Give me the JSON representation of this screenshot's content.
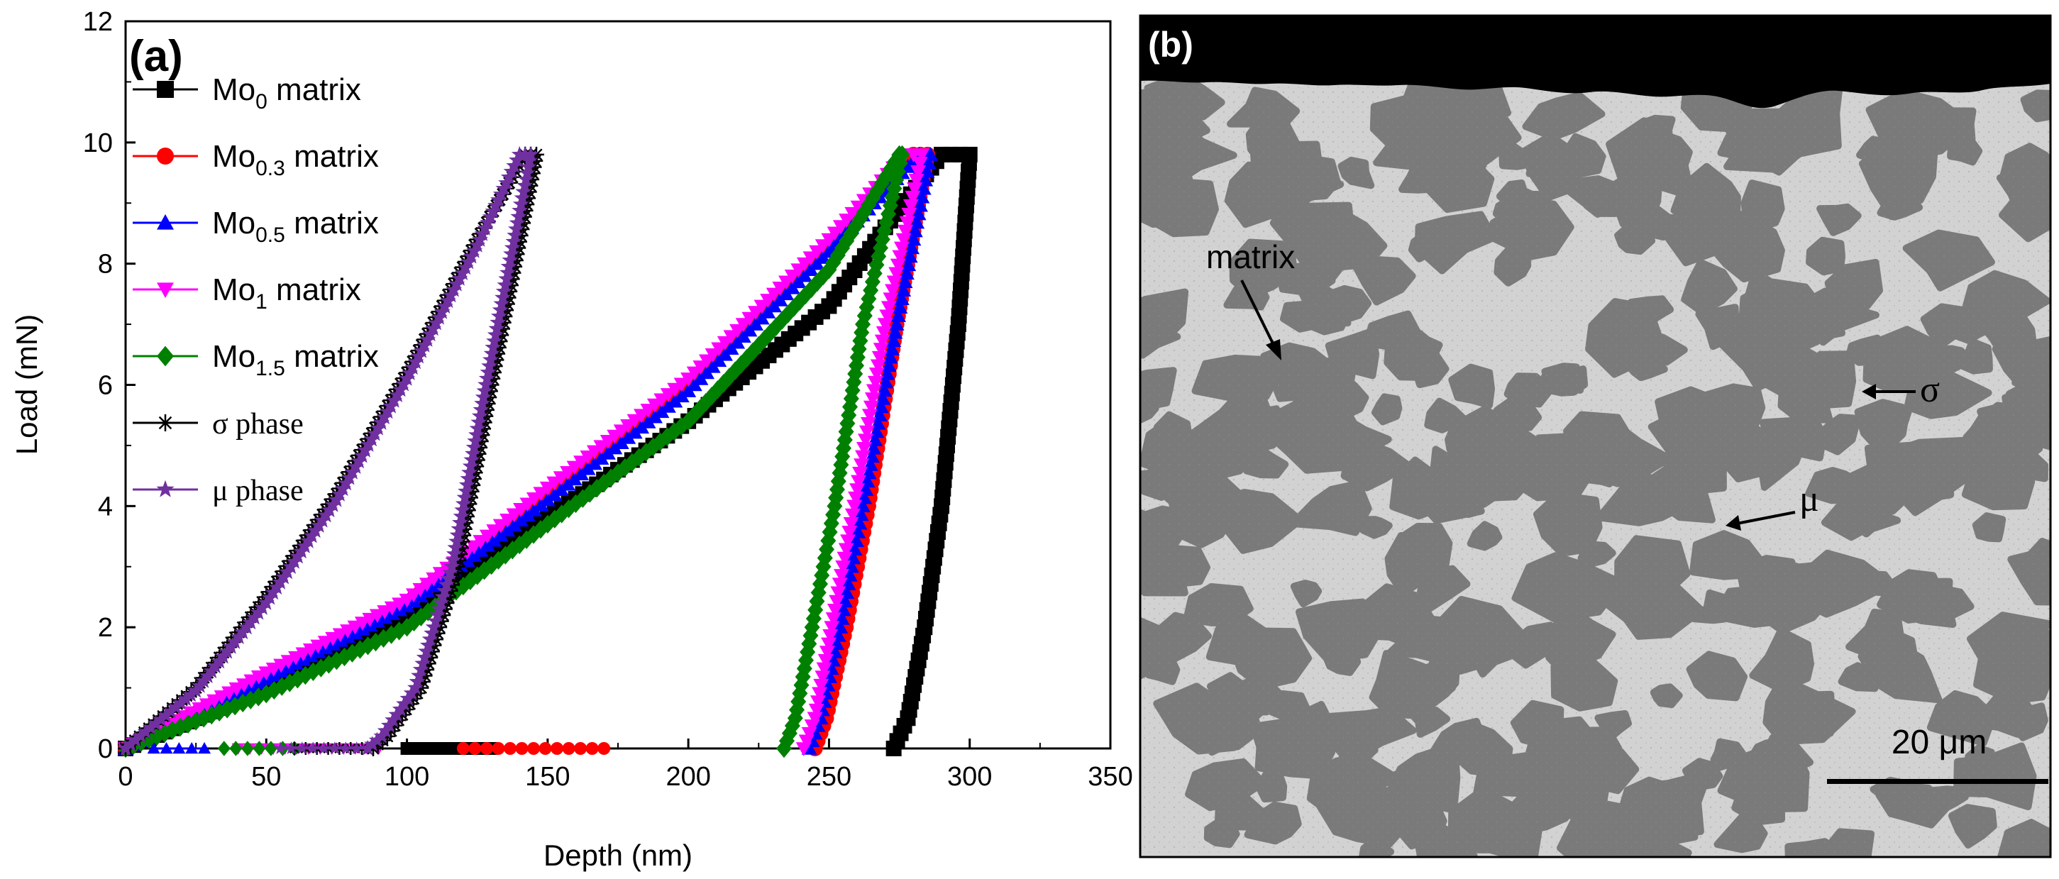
{
  "chart_data": [
    {
      "type": "line",
      "panel_label": "(a)",
      "xlabel": "Depth (nm)",
      "ylabel": "Load (mN)",
      "xlim": [
        0,
        350
      ],
      "ylim": [
        0,
        12
      ],
      "x_ticks": [
        0,
        50,
        100,
        150,
        200,
        250,
        300,
        350
      ],
      "y_ticks": [
        0,
        2,
        4,
        6,
        8,
        10,
        12
      ],
      "grid": false,
      "legend_position": "top-left",
      "series": [
        {
          "name": "Mo0 matrix",
          "base": "Mo",
          "sub": "0",
          "suffix": " matrix",
          "color": "#000000",
          "marker": "square",
          "loading": [
            [
              0,
              0
            ],
            [
              50,
              1.0
            ],
            [
              100,
              2.2
            ],
            [
              150,
              3.8
            ],
            [
              200,
              5.4
            ],
            [
              250,
              7.3
            ],
            [
              270,
              8.6
            ],
            [
              290,
              9.8
            ]
          ],
          "hold": [
            [
              290,
              9.8
            ],
            [
              300,
              9.8
            ]
          ],
          "unloading": [
            [
              300,
              9.8
            ],
            [
              296,
              7.0
            ],
            [
              290,
              4.0
            ],
            [
              284,
              2.0
            ],
            [
              278,
              0.5
            ],
            [
              273,
              0
            ]
          ],
          "baseline": [
            [
              100,
              0
            ],
            [
              130,
              0
            ]
          ]
        },
        {
          "name": "Mo0.3 matrix",
          "base": "Mo",
          "sub": "0.3",
          "suffix": " matrix",
          "color": "#ff0000",
          "marker": "circle",
          "loading": [
            [
              0,
              0
            ],
            [
              50,
              1.2
            ],
            [
              100,
              2.4
            ],
            [
              150,
              4.2
            ],
            [
              200,
              6.0
            ],
            [
              250,
              8.3
            ],
            [
              280,
              9.8
            ]
          ],
          "hold": [
            [
              280,
              9.8
            ],
            [
              285,
              9.8
            ]
          ],
          "unloading": [
            [
              285,
              9.8
            ],
            [
              274,
              7.0
            ],
            [
              264,
              4.0
            ],
            [
              256,
              2.0
            ],
            [
              249,
              0.5
            ],
            [
              245,
              0
            ]
          ],
          "baseline": [
            [
              120,
              0
            ],
            [
              170,
              0
            ]
          ]
        },
        {
          "name": "Mo0.5 matrix",
          "base": "Mo",
          "sub": "0.5",
          "suffix": " matrix",
          "color": "#0000ff",
          "marker": "triangle-up",
          "loading": [
            [
              0,
              0
            ],
            [
              50,
              1.15
            ],
            [
              100,
              2.35
            ],
            [
              150,
              4.1
            ],
            [
              200,
              5.9
            ],
            [
              250,
              8.2
            ],
            [
              282,
              9.8
            ]
          ],
          "hold": [
            [
              282,
              9.8
            ],
            [
              286,
              9.8
            ]
          ],
          "unloading": [
            [
              286,
              9.8
            ],
            [
              274,
              7.0
            ],
            [
              262,
              4.0
            ],
            [
              254,
              2.0
            ],
            [
              247,
              0.5
            ],
            [
              243,
              0
            ]
          ],
          "baseline": [
            [
              10,
              0
            ],
            [
              28,
              0
            ]
          ]
        },
        {
          "name": "Mo1 matrix",
          "base": "Mo",
          "sub": "1",
          "suffix": " matrix",
          "color": "#ff00ff",
          "marker": "triangle-down",
          "loading": [
            [
              0,
              0
            ],
            [
              50,
              1.25
            ],
            [
              100,
              2.45
            ],
            [
              150,
              4.3
            ],
            [
              200,
              6.1
            ],
            [
              250,
              8.4
            ],
            [
              277,
              9.8
            ]
          ],
          "hold": [
            [
              277,
              9.8
            ],
            [
              283,
              9.8
            ]
          ],
          "unloading": [
            [
              283,
              9.8
            ],
            [
              270,
              7.0
            ],
            [
              259,
              4.0
            ],
            [
              251,
              2.0
            ],
            [
              245,
              0.5
            ],
            [
              241,
              0
            ]
          ],
          "baseline": [
            [
              40,
              0
            ],
            [
              90,
              0
            ]
          ]
        },
        {
          "name": "Mo1.5 matrix",
          "base": "Mo",
          "sub": "1.5",
          "suffix": " matrix",
          "color": "#008000",
          "marker": "diamond",
          "loading": [
            [
              0,
              0
            ],
            [
              50,
              0.9
            ],
            [
              100,
              2.0
            ],
            [
              150,
              3.7
            ],
            [
              200,
              5.4
            ],
            [
              250,
              7.9
            ],
            [
              275,
              9.8
            ]
          ],
          "hold": [
            [
              275,
              9.8
            ],
            [
              276,
              9.8
            ]
          ],
          "unloading": [
            [
              276,
              9.8
            ],
            [
              262,
              7.0
            ],
            [
              252,
              4.0
            ],
            [
              244,
              2.0
            ],
            [
              238,
              0.5
            ],
            [
              234,
              0
            ]
          ],
          "baseline": [
            [
              35,
              0
            ],
            [
              60,
              0
            ]
          ]
        },
        {
          "name": "σ phase",
          "base": "σ phase",
          "sub": "",
          "suffix": "",
          "color": "#000000",
          "marker": "star",
          "loading": [
            [
              0,
              0
            ],
            [
              25,
              1.0
            ],
            [
              50,
              2.5
            ],
            [
              75,
              4.2
            ],
            [
              100,
              6.2
            ],
            [
              125,
              8.4
            ],
            [
              142,
              9.8
            ]
          ],
          "hold": [
            [
              142,
              9.8
            ],
            [
              146,
              9.8
            ]
          ],
          "unloading": [
            [
              146,
              9.8
            ],
            [
              130,
              6.0
            ],
            [
              118,
              3.0
            ],
            [
              105,
              1.0
            ],
            [
              93,
              0.2
            ],
            [
              88,
              0
            ]
          ],
          "baseline": [
            [
              60,
              0
            ],
            [
              88,
              0
            ]
          ]
        },
        {
          "name": "μ phase",
          "base": " μ phase",
          "sub": "",
          "suffix": "",
          "color": "#7030a0",
          "marker": "star5",
          "loading": [
            [
              0,
              0
            ],
            [
              25,
              0.95
            ],
            [
              50,
              2.4
            ],
            [
              75,
              4.1
            ],
            [
              100,
              6.1
            ],
            [
              125,
              8.3
            ],
            [
              140,
              9.8
            ]
          ],
          "hold": [
            [
              140,
              9.8
            ],
            [
              144,
              9.8
            ]
          ],
          "unloading": [
            [
              144,
              9.8
            ],
            [
              128,
              6.0
            ],
            [
              116,
              3.0
            ],
            [
              103,
              1.0
            ],
            [
              91,
              0.2
            ],
            [
              86,
              0
            ]
          ],
          "baseline": [
            [
              55,
              0
            ],
            [
              86,
              0
            ]
          ]
        }
      ]
    }
  ],
  "micrograph": {
    "panel_label": "(b)",
    "labels": {
      "matrix": "matrix",
      "sigma": "σ",
      "mu": "μ"
    },
    "scale_bar": "20 μm",
    "colors": {
      "bright_phase": "#d2d2d2",
      "dark_phase": "#7a7a7a",
      "top_region": "#000000"
    }
  }
}
